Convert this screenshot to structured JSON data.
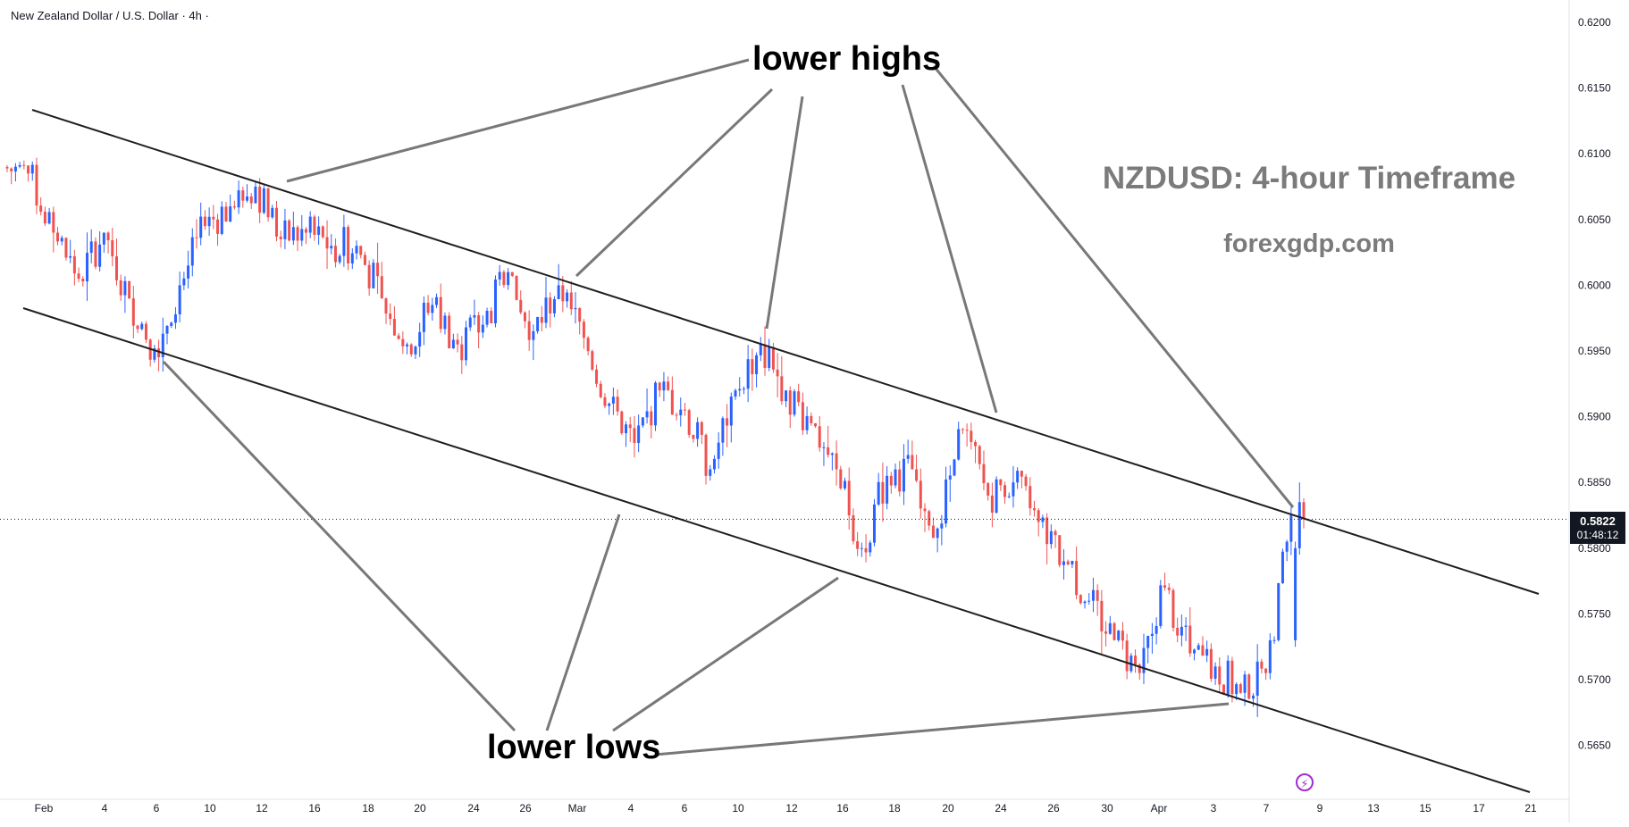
{
  "header": {
    "symbol_label": "New Zealand Dollar / U.S. Dollar · 4h ·"
  },
  "annotations": {
    "title": "NZDUSD: 4-hour Timeframe",
    "site": "forexgdp.com",
    "lower_highs": "lower highs",
    "lower_lows": "lower lows"
  },
  "price_label": {
    "price": "0.5822",
    "countdown": "01:48:12"
  },
  "icons": {
    "lightning": "lightning-icon"
  },
  "colors": {
    "up": "#2962ff",
    "down": "#ef5350",
    "channel": "#1f1f1f",
    "arrows": "#787878",
    "text_gray": "#7b7b7b"
  },
  "chart_data": {
    "type": "candlestick",
    "title": "",
    "xlabel": "",
    "ylabel": "",
    "x_ticks": [
      "Feb",
      "4",
      "6",
      "10",
      "12",
      "16",
      "18",
      "20",
      "24",
      "26",
      "Mar",
      "4",
      "6",
      "10",
      "12",
      "16",
      "18",
      "20",
      "24",
      "26",
      "30",
      "Apr",
      "3",
      "7",
      "9",
      "13",
      "15",
      "17",
      "21"
    ],
    "y_ticks": [
      "0.6200",
      "0.6150",
      "0.6100",
      "0.6050",
      "0.6000",
      "0.5950",
      "0.5900",
      "0.5850",
      "0.5800",
      "0.5750",
      "0.5700",
      "0.5650"
    ],
    "ylim": [
      0.5615,
      0.6215
    ],
    "current_price": 0.5822,
    "grid": false,
    "series_close": [
      {
        "x": "Feb 1",
        "y": 0.6085
      },
      {
        "x": "Feb 2",
        "y": 0.604
      },
      {
        "x": "Feb 3",
        "y": 0.6005
      },
      {
        "x": "Feb 4",
        "y": 0.604
      },
      {
        "x": "Feb 5",
        "y": 0.599
      },
      {
        "x": "Feb 6",
        "y": 0.5952
      },
      {
        "x": "Feb 7",
        "y": 0.6
      },
      {
        "x": "Feb 8",
        "y": 0.6045
      },
      {
        "x": "Feb 9",
        "y": 0.606
      },
      {
        "x": "Feb 12",
        "y": 0.6075
      },
      {
        "x": "Feb 13",
        "y": 0.6035
      },
      {
        "x": "Feb 14",
        "y": 0.604
      },
      {
        "x": "Feb 15",
        "y": 0.603
      },
      {
        "x": "Feb 16",
        "y": 0.603
      },
      {
        "x": "Feb 19",
        "y": 0.599
      },
      {
        "x": "Feb 20",
        "y": 0.5955
      },
      {
        "x": "Feb 21",
        "y": 0.5985
      },
      {
        "x": "Feb 22",
        "y": 0.5955
      },
      {
        "x": "Feb 23",
        "y": 0.597
      },
      {
        "x": "Feb 26",
        "y": 0.601
      },
      {
        "x": "Feb 27",
        "y": 0.5965
      },
      {
        "x": "Feb 28",
        "y": 0.6
      },
      {
        "x": "Feb 29",
        "y": 0.596
      },
      {
        "x": "Mar 1",
        "y": 0.591
      },
      {
        "x": "Mar 4",
        "y": 0.588
      },
      {
        "x": "Mar 5",
        "y": 0.592
      },
      {
        "x": "Mar 6",
        "y": 0.5905
      },
      {
        "x": "Mar 7",
        "y": 0.586
      },
      {
        "x": "Mar 8",
        "y": 0.592
      },
      {
        "x": "Mar 11",
        "y": 0.5955
      },
      {
        "x": "Mar 12",
        "y": 0.592
      },
      {
        "x": "Mar 13",
        "y": 0.5895
      },
      {
        "x": "Mar 14",
        "y": 0.586
      },
      {
        "x": "Mar 15",
        "y": 0.58
      },
      {
        "x": "Mar 18",
        "y": 0.5855
      },
      {
        "x": "Mar 19",
        "y": 0.586
      },
      {
        "x": "Mar 20",
        "y": 0.5815
      },
      {
        "x": "Mar 21",
        "y": 0.589
      },
      {
        "x": "Mar 22",
        "y": 0.584
      },
      {
        "x": "Mar 25",
        "y": 0.585
      },
      {
        "x": "Mar 26",
        "y": 0.582
      },
      {
        "x": "Mar 27",
        "y": 0.579
      },
      {
        "x": "Mar 28",
        "y": 0.576
      },
      {
        "x": "Mar 29",
        "y": 0.573
      },
      {
        "x": "Apr 1",
        "y": 0.5705
      },
      {
        "x": "Apr 2",
        "y": 0.577
      },
      {
        "x": "Apr 3",
        "y": 0.572
      },
      {
        "x": "Apr 4",
        "y": 0.571
      },
      {
        "x": "Apr 5",
        "y": 0.569
      },
      {
        "x": "Apr 8",
        "y": 0.5705
      },
      {
        "x": "Apr 9",
        "y": 0.5825
      }
    ]
  }
}
